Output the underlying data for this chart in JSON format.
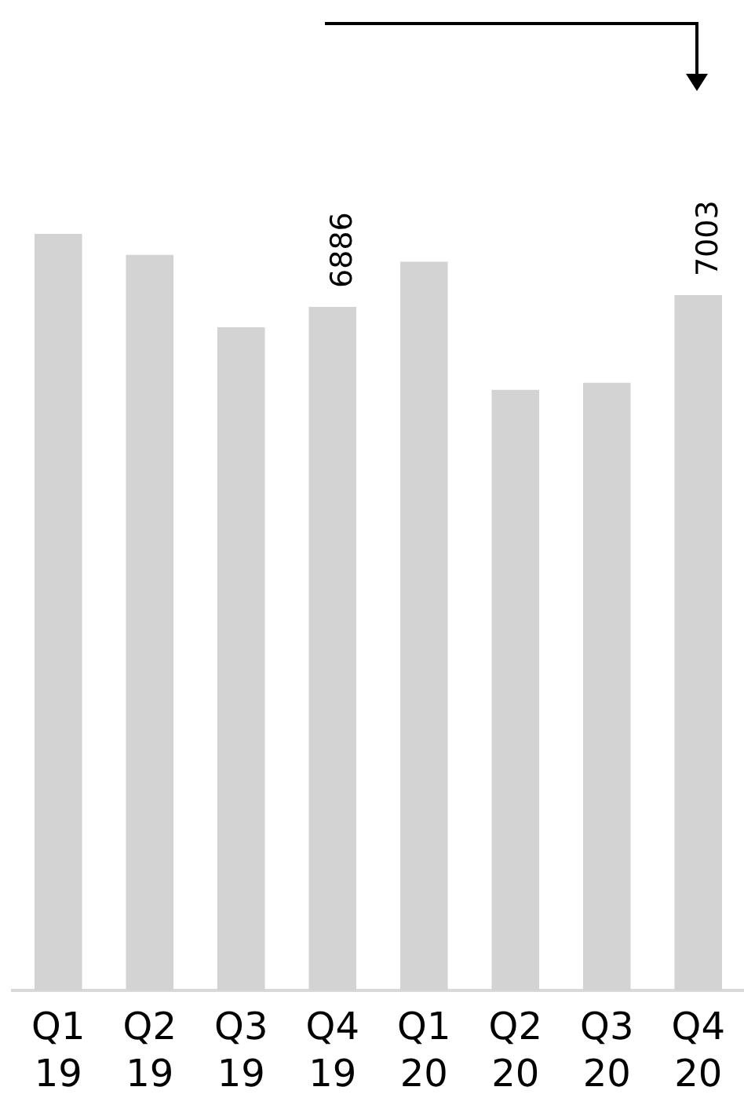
{
  "chart_data": {
    "type": "bar",
    "categories": [
      "Q1 19",
      "Q2 19",
      "Q3 19",
      "Q4 19",
      "Q1 20",
      "Q2 20",
      "Q3 20",
      "Q4 20"
    ],
    "values": [
      7620,
      7410,
      6680,
      6886,
      7340,
      6050,
      6120,
      7003
    ],
    "value_labels": [
      null,
      null,
      null,
      "6886",
      null,
      null,
      null,
      "7003"
    ],
    "color": "#d3d3d3",
    "tick_labels": "x",
    "grid": false,
    "legend": false
  }
}
